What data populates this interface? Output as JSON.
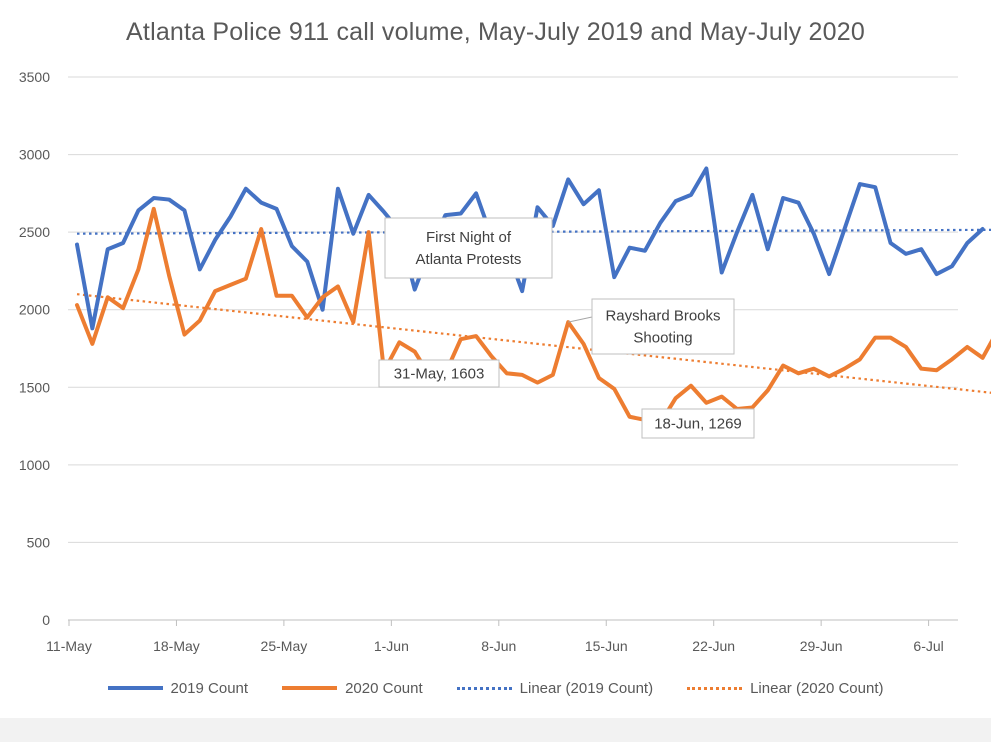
{
  "chart_data": {
    "type": "line",
    "title": "Atlanta Police 911 call volume, May-July 2019 and May-July 2020",
    "xlabel": "",
    "ylabel": "",
    "ylim": [
      0,
      3500
    ],
    "yticks": [
      0,
      500,
      1000,
      1500,
      2000,
      2500,
      3000,
      3500
    ],
    "xticks": [
      {
        "day": 0,
        "label": "11-May"
      },
      {
        "day": 7,
        "label": "18-May"
      },
      {
        "day": 14,
        "label": "25-May"
      },
      {
        "day": 21,
        "label": "1-Jun"
      },
      {
        "day": 28,
        "label": "8-Jun"
      },
      {
        "day": 35,
        "label": "15-Jun"
      },
      {
        "day": 42,
        "label": "22-Jun"
      },
      {
        "day": 49,
        "label": "29-Jun"
      },
      {
        "day": 56,
        "label": "6-Jul"
      }
    ],
    "x_first_day_label": "11-May",
    "series": [
      {
        "name": "2019 Count",
        "color": "#4472c4",
        "style": "solid",
        "values": [
          2420,
          1880,
          2390,
          2430,
          2640,
          2720,
          2710,
          2640,
          2260,
          2450,
          2600,
          2780,
          2690,
          2650,
          2410,
          2310,
          2000,
          2780,
          2490,
          2740,
          2630,
          2510,
          2130,
          2390,
          2610,
          2620,
          2750,
          2470,
          2390,
          2120,
          2660,
          2540,
          2840,
          2680,
          2770,
          2210,
          2400,
          2380,
          2560,
          2700,
          2740,
          2910,
          2240,
          2500,
          2740,
          2390,
          2720,
          2690,
          2490,
          2230,
          2520,
          2810,
          2790,
          2430,
          2360,
          2390,
          2230,
          2280,
          2430,
          2520
        ]
      },
      {
        "name": "2020 Count",
        "color": "#ed7d31",
        "style": "solid",
        "values": [
          2030,
          1780,
          2080,
          2010,
          2260,
          2650,
          2220,
          1840,
          1930,
          2120,
          2160,
          2200,
          2520,
          2090,
          2090,
          1950,
          2080,
          2150,
          1920,
          2500,
          1603,
          1790,
          1730,
          1570,
          1590,
          1810,
          1830,
          1700,
          1590,
          1580,
          1530,
          1580,
          1920,
          1780,
          1560,
          1490,
          1310,
          1290,
          1269,
          1430,
          1510,
          1400,
          1440,
          1360,
          1370,
          1480,
          1640,
          1590,
          1620,
          1570,
          1620,
          1680,
          1820,
          1820,
          1760,
          1620,
          1610,
          1680,
          1760,
          1690,
          1870
        ]
      },
      {
        "name": "Linear (2019 Count)",
        "color": "#4472c4",
        "style": "dotted",
        "trend": [
          2490,
          2515
        ]
      },
      {
        "name": "Linear (2020 Count)",
        "color": "#ed7d31",
        "style": "dotted",
        "trend": [
          2100,
          1460
        ]
      }
    ],
    "annotations": [
      {
        "id": "protests",
        "lines": [
          "First Night of",
          "Atlanta Protests"
        ],
        "day": 20,
        "value": 2500
      },
      {
        "id": "may31",
        "lines": [
          "31-May, 1603"
        ],
        "day": 20,
        "value": 1603
      },
      {
        "id": "brooks",
        "lines": [
          "Rayshard Brooks",
          "Shooting"
        ],
        "day": 32,
        "value": 1920
      },
      {
        "id": "jun18",
        "lines": [
          "18-Jun, 1269"
        ],
        "day": 38,
        "value": 1269
      }
    ]
  }
}
